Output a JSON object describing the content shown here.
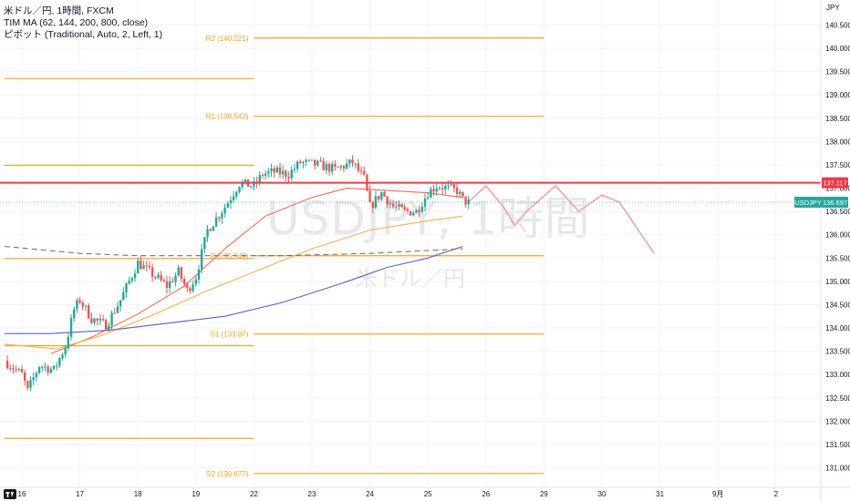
{
  "legend": {
    "symbol_line": "米ドル／円, 1時間, FXCM",
    "ma_line": "TIM MA (62, 144, 200, 800, close)",
    "pivot_line": "ピボット (Traditional, Auto, 2, Left, 1)"
  },
  "watermark": {
    "symbol": "USDJPY, 1時間",
    "name": "米ドル／円"
  },
  "currency_label": "JPY",
  "colors": {
    "pivot": "#f7a21b",
    "ma_fast": "#f26c5a",
    "ma_mid": "#f7ad4f",
    "ma_slow": "#5b5fc7",
    "ma_long": "#6b6f86",
    "resistance": "#f23645",
    "forecast": "#f0a59e",
    "up_candle": "#26a69a",
    "down_candle": "#ef5350",
    "price_badge": "#26a69a",
    "grid": "#f0f3fa"
  },
  "chart_data": {
    "type": "line",
    "title": "米ドル／円, 1時間, FXCM",
    "ylabel": "JPY",
    "ylim": [
      130.75,
      140.75
    ],
    "yticks": [
      "140.500",
      "140.000",
      "139.500",
      "139.000",
      "138.500",
      "138.000",
      "137.500",
      "137.000",
      "136.500",
      "136.000",
      "135.500",
      "135.000",
      "134.500",
      "134.000",
      "133.500",
      "133.000",
      "132.500",
      "132.000",
      "131.500",
      "131.000"
    ],
    "ytick_values": [
      140.5,
      140.0,
      139.5,
      139.0,
      138.5,
      138.0,
      137.5,
      137.0,
      136.5,
      136.0,
      135.5,
      135.0,
      134.5,
      134.0,
      133.5,
      133.0,
      132.5,
      132.0,
      131.5,
      131.0
    ],
    "x_range": [
      0,
      13.5
    ],
    "xticks": [
      "16",
      "17",
      "18",
      "19",
      "22",
      "23",
      "24",
      "25",
      "26",
      "29",
      "30",
      "31",
      "9月",
      "2"
    ],
    "xtick_values": [
      0,
      1,
      2,
      3,
      4,
      5,
      6,
      7,
      8,
      9,
      10,
      11,
      12,
      13
    ],
    "current_price": {
      "label": "USDJPY",
      "value": "136.697"
    },
    "resistance_line": {
      "value": "137.117"
    },
    "pivots": [
      {
        "label": "R2 (140.221)",
        "value": 140.221,
        "x": [
          4.0,
          9.0
        ]
      },
      {
        "label": "R1 (138.542)",
        "value": 138.542,
        "x": [
          4.0,
          9.0
        ]
      },
      {
        "label": "P (135.549)",
        "value": 135.549,
        "x": [
          4.0,
          9.0
        ]
      },
      {
        "label": "S1 (133.87)",
        "value": 133.87,
        "x": [
          4.0,
          9.0
        ]
      },
      {
        "label": "S2 (130.877)",
        "value": 130.877,
        "x": [
          4.0,
          9.0
        ]
      }
    ],
    "prev_pivots": [
      {
        "value": 139.35,
        "x": [
          -0.3,
          4.0
        ]
      },
      {
        "value": 137.49,
        "x": [
          -0.3,
          4.0
        ]
      },
      {
        "value": 135.49,
        "x": [
          -0.3,
          4.0
        ]
      },
      {
        "value": 133.62,
        "x": [
          -0.3,
          4.0
        ]
      },
      {
        "value": 131.63,
        "x": [
          -0.3,
          4.0
        ]
      }
    ],
    "price_path": [
      {
        "x": -0.3,
        "y": 133.3
      },
      {
        "x": 0.0,
        "y": 133.0
      },
      {
        "x": 0.1,
        "y": 132.65
      },
      {
        "x": 0.3,
        "y": 133.2
      },
      {
        "x": 0.55,
        "y": 133.1
      },
      {
        "x": 0.75,
        "y": 133.6
      },
      {
        "x": 0.9,
        "y": 134.4
      },
      {
        "x": 1.0,
        "y": 134.6
      },
      {
        "x": 1.2,
        "y": 134.2
      },
      {
        "x": 1.45,
        "y": 134.05
      },
      {
        "x": 1.7,
        "y": 134.6
      },
      {
        "x": 2.0,
        "y": 135.4
      },
      {
        "x": 2.3,
        "y": 135.1
      },
      {
        "x": 2.5,
        "y": 134.9
      },
      {
        "x": 2.7,
        "y": 135.2
      },
      {
        "x": 2.85,
        "y": 134.8
      },
      {
        "x": 3.0,
        "y": 135.1
      },
      {
        "x": 3.2,
        "y": 136.1
      },
      {
        "x": 3.5,
        "y": 136.6
      },
      {
        "x": 3.75,
        "y": 137.1
      },
      {
        "x": 4.0,
        "y": 137.05
      },
      {
        "x": 4.15,
        "y": 137.3
      },
      {
        "x": 4.35,
        "y": 137.35
      },
      {
        "x": 4.6,
        "y": 137.3
      },
      {
        "x": 4.8,
        "y": 137.55
      },
      {
        "x": 5.1,
        "y": 137.5
      },
      {
        "x": 5.4,
        "y": 137.4
      },
      {
        "x": 5.7,
        "y": 137.55
      },
      {
        "x": 5.9,
        "y": 137.2
      },
      {
        "x": 6.0,
        "y": 136.6
      },
      {
        "x": 6.2,
        "y": 136.9
      },
      {
        "x": 6.4,
        "y": 136.6
      },
      {
        "x": 6.6,
        "y": 136.5
      },
      {
        "x": 6.8,
        "y": 136.5
      },
      {
        "x": 7.0,
        "y": 136.9
      },
      {
        "x": 7.15,
        "y": 137.05
      },
      {
        "x": 7.35,
        "y": 137.0
      },
      {
        "x": 7.5,
        "y": 136.95
      },
      {
        "x": 7.6,
        "y": 136.75
      },
      {
        "x": 7.7,
        "y": 136.69
      }
    ],
    "series": [
      {
        "name": "MA 62",
        "color_key": "ma_fast",
        "points": [
          {
            "x": 0.5,
            "y": 133.45
          },
          {
            "x": 1.2,
            "y": 133.8
          },
          {
            "x": 2.0,
            "y": 134.3
          },
          {
            "x": 2.8,
            "y": 134.9
          },
          {
            "x": 3.5,
            "y": 135.7
          },
          {
            "x": 4.2,
            "y": 136.4
          },
          {
            "x": 5.0,
            "y": 136.8
          },
          {
            "x": 5.6,
            "y": 137.0
          },
          {
            "x": 6.3,
            "y": 136.95
          },
          {
            "x": 7.0,
            "y": 136.9
          },
          {
            "x": 7.6,
            "y": 136.8
          }
        ]
      },
      {
        "name": "MA 144",
        "color_key": "ma_mid",
        "points": [
          {
            "x": -0.3,
            "y": 133.65
          },
          {
            "x": 0.6,
            "y": 133.55
          },
          {
            "x": 1.4,
            "y": 133.85
          },
          {
            "x": 2.3,
            "y": 134.3
          },
          {
            "x": 3.2,
            "y": 134.8
          },
          {
            "x": 4.2,
            "y": 135.3
          },
          {
            "x": 5.0,
            "y": 135.7
          },
          {
            "x": 6.0,
            "y": 136.1
          },
          {
            "x": 7.0,
            "y": 136.3
          },
          {
            "x": 7.6,
            "y": 136.4
          }
        ]
      },
      {
        "name": "MA 200",
        "color_key": "ma_slow",
        "points": [
          {
            "x": -0.3,
            "y": 133.88
          },
          {
            "x": 0.5,
            "y": 133.88
          },
          {
            "x": 1.5,
            "y": 133.95
          },
          {
            "x": 2.5,
            "y": 134.1
          },
          {
            "x": 3.5,
            "y": 134.25
          },
          {
            "x": 4.5,
            "y": 134.55
          },
          {
            "x": 5.5,
            "y": 134.95
          },
          {
            "x": 6.3,
            "y": 135.3
          },
          {
            "x": 7.0,
            "y": 135.5
          },
          {
            "x": 7.6,
            "y": 135.75
          }
        ]
      },
      {
        "name": "MA 800",
        "color_key": "ma_long",
        "dashed": true,
        "points": [
          {
            "x": -0.3,
            "y": 135.75
          },
          {
            "x": 1.0,
            "y": 135.6
          },
          {
            "x": 2.0,
            "y": 135.55
          },
          {
            "x": 3.0,
            "y": 135.55
          },
          {
            "x": 4.5,
            "y": 135.55
          },
          {
            "x": 6.0,
            "y": 135.6
          },
          {
            "x": 7.6,
            "y": 135.7
          }
        ]
      },
      {
        "name": "Forecast",
        "color_key": "forecast",
        "points": [
          {
            "x": 7.7,
            "y": 136.7
          },
          {
            "x": 8.0,
            "y": 137.05
          },
          {
            "x": 8.3,
            "y": 136.6
          },
          {
            "x": 8.5,
            "y": 136.2
          },
          {
            "x": 8.7,
            "y": 136.5
          },
          {
            "x": 9.2,
            "y": 137.05
          },
          {
            "x": 9.6,
            "y": 136.5
          },
          {
            "x": 10.0,
            "y": 136.85
          },
          {
            "x": 10.3,
            "y": 136.7
          },
          {
            "x": 10.9,
            "y": 135.6
          }
        ]
      }
    ]
  }
}
